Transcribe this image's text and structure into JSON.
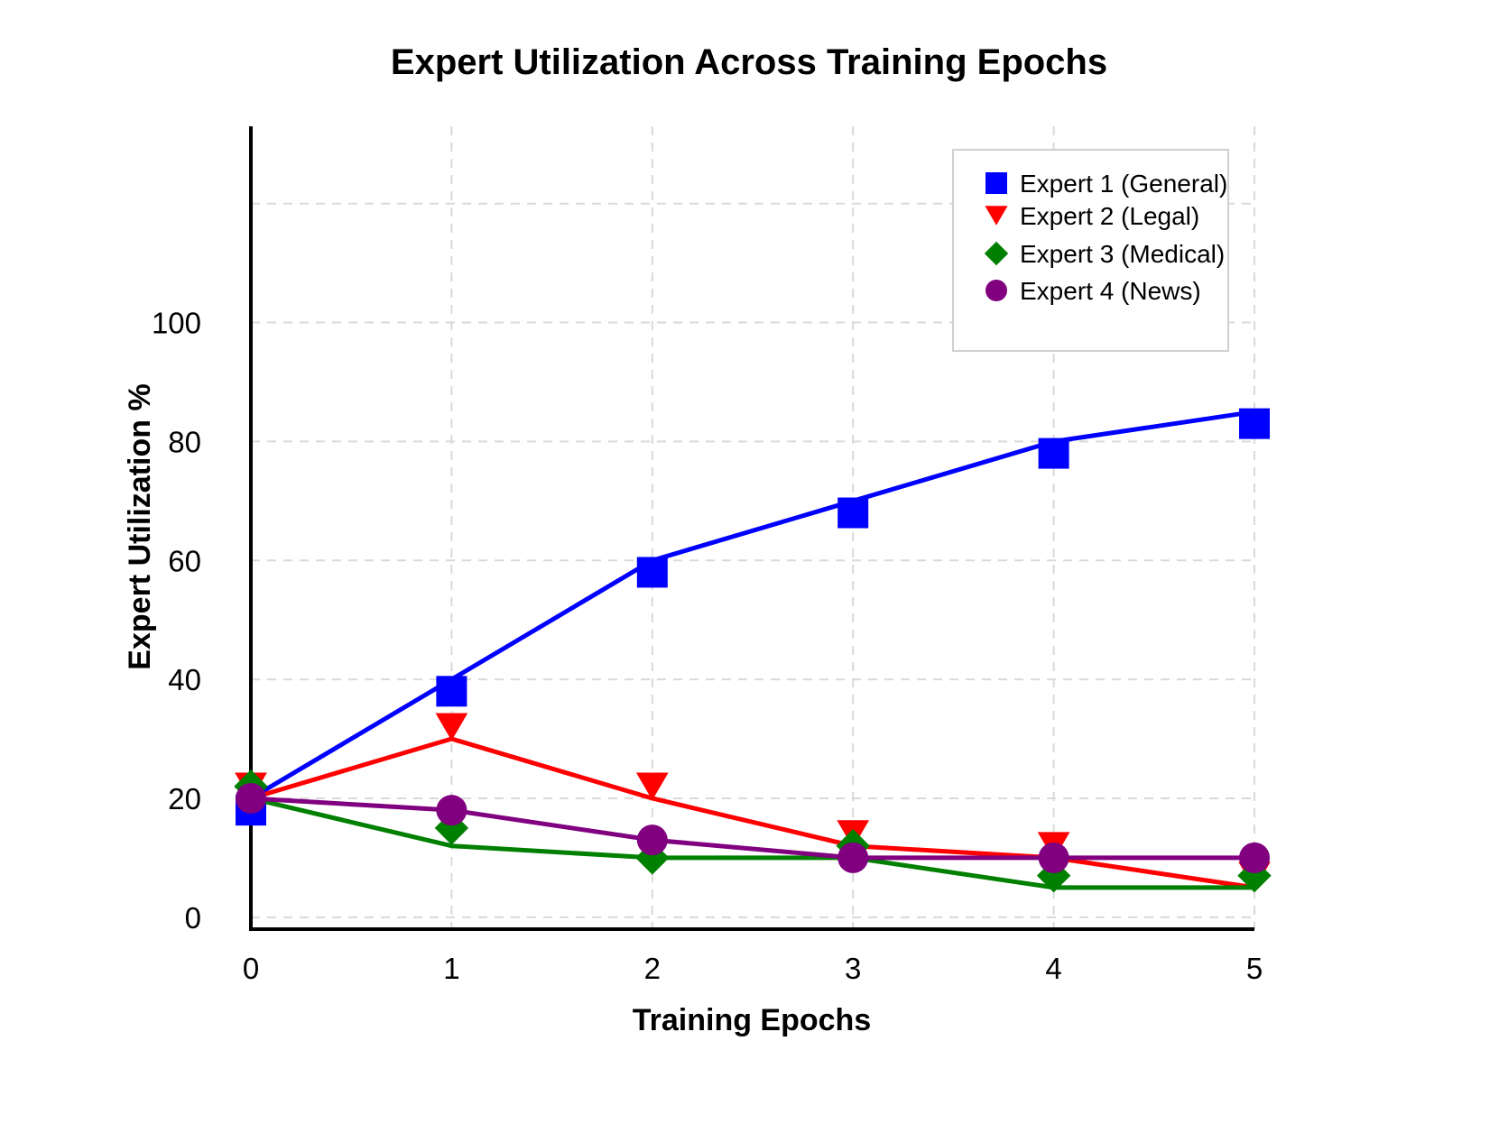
{
  "chart_data": {
    "type": "line",
    "title": "Expert Utilization Across Training Epochs",
    "xlabel": "Training Epochs",
    "ylabel": "Expert Utilization %",
    "x": [
      0,
      1,
      2,
      3,
      4,
      5
    ],
    "xlim": [
      0,
      5
    ],
    "ylim": [
      -2,
      133
    ],
    "yticks": [
      0,
      20,
      40,
      60,
      80,
      100
    ],
    "grid": true,
    "legend_position": "top-right",
    "series": [
      {
        "name": "Expert 1 (General)",
        "color": "#0000ff",
        "marker": "square",
        "line": [
          20,
          40,
          60,
          70,
          80,
          85
        ],
        "values": [
          18,
          38,
          58,
          68,
          78,
          83
        ]
      },
      {
        "name": "Expert 2 (Legal)",
        "color": "#ff0000",
        "marker": "triangle-down",
        "line": [
          20,
          30,
          20,
          12,
          10,
          5
        ],
        "values": [
          22,
          32,
          22,
          14,
          12,
          7
        ]
      },
      {
        "name": "Expert 3 (Medical)",
        "color": "#008000",
        "marker": "diamond",
        "line": [
          20,
          12,
          10,
          10,
          5,
          5
        ],
        "values": [
          22,
          15,
          10,
          12,
          7,
          7
        ]
      },
      {
        "name": "Expert 4 (News)",
        "color": "#800080",
        "marker": "circle",
        "line": [
          20,
          18,
          13,
          10,
          10,
          10
        ],
        "values": [
          20,
          18,
          13,
          10,
          10,
          10
        ]
      }
    ]
  }
}
